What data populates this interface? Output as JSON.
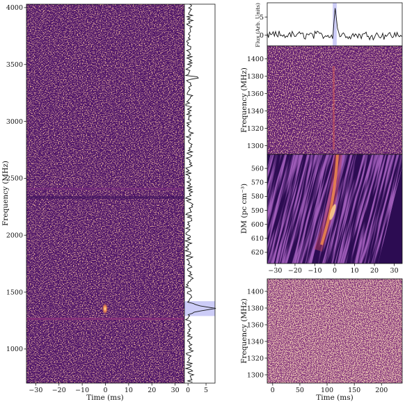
{
  "colors": {
    "magma_dark": "#2b0a4e",
    "magma_mid": "#6f1f7e",
    "magma_hot": "#e06a52",
    "magma_bright": "#fde7a0",
    "highlight_band": "#ccccf7",
    "line": "#111111"
  },
  "chart_data": [
    {
      "id": "waterfall_full",
      "type": "heatmap",
      "xlabel": "Time (ms)",
      "ylabel": "Frequency (MHz)",
      "xlim": [
        -34,
        34
      ],
      "ylim": [
        700,
        4030
      ],
      "xticks": [
        -30,
        -20,
        -10,
        0,
        10,
        20,
        30
      ],
      "yticks": [
        1000,
        1500,
        2000,
        2500,
        3000,
        3500,
        4000
      ],
      "burst": {
        "time_ms": 0,
        "freq_mhz": 1360
      },
      "masked_channels_mhz": [
        1280,
        2330,
        2380
      ]
    },
    {
      "id": "spectrum",
      "type": "line",
      "xticks": [
        0,
        5
      ],
      "xlim": [
        -1,
        7.5
      ],
      "ylim": [
        700,
        4030
      ],
      "highlight_band_mhz": [
        1290,
        1420
      ],
      "peak": {
        "x": 7.0,
        "freq_mhz": 1355
      }
    },
    {
      "id": "pulse_profile",
      "type": "line",
      "ylabel": "Flux (Arb. Units)",
      "yticks": [
        0,
        5
      ],
      "xlim": [
        -34,
        34
      ],
      "ylim": [
        -3,
        9
      ],
      "peak": {
        "time_ms": 0,
        "flux": 7.5
      },
      "highlight_span_ms": [
        -1,
        1
      ]
    },
    {
      "id": "waterfall_zoom",
      "type": "heatmap",
      "ylabel": "Frequency (MHz)",
      "xlim": [
        -34,
        34
      ],
      "ylim": [
        1290,
        1415
      ],
      "yticks": [
        1300,
        1320,
        1340,
        1360,
        1380,
        1400
      ]
    },
    {
      "id": "dm_time",
      "type": "heatmap",
      "xlabel": "",
      "ylabel": "DM (pc cm⁻³)",
      "xlim": [
        -34,
        34
      ],
      "ylim": [
        628,
        550
      ],
      "xticks": [
        -30,
        -20,
        -10,
        0,
        10,
        20,
        30
      ],
      "yticks": [
        560,
        570,
        580,
        590,
        600,
        610,
        620
      ],
      "peak": {
        "time_ms": 0,
        "dm": 590
      }
    },
    {
      "id": "waterfall_long",
      "type": "heatmap",
      "xlabel": "Time (ms)",
      "ylabel": "Frequency (MHz)",
      "xlim": [
        -10,
        238
      ],
      "ylim": [
        1290,
        1415
      ],
      "xticks": [
        0,
        50,
        100,
        150,
        200
      ],
      "yticks": [
        1300,
        1320,
        1340,
        1360,
        1380,
        1400
      ]
    }
  ]
}
